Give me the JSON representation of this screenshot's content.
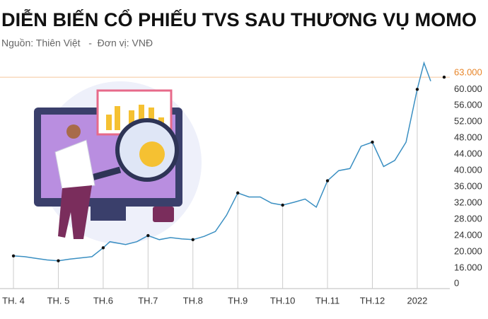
{
  "chart_data": {
    "type": "line",
    "title": "DIỄN BIẾN CỔ PHIẾU TVS SAU THƯƠNG VỤ MOMO",
    "subtitle": "Nguồn: Thiên Việt   -  Đơn vị: VNĐ",
    "x": [
      0,
      0.25,
      0.5,
      0.75,
      1,
      1.25,
      1.5,
      1.75,
      2,
      2.15,
      2.5,
      2.75,
      3,
      3.25,
      3.5,
      3.75,
      4,
      4.25,
      4.5,
      4.75,
      5,
      5.25,
      5.5,
      5.75,
      6,
      6.25,
      6.5,
      6.75,
      7,
      7.25,
      7.5,
      7.75,
      8,
      8.25,
      8.5,
      8.75,
      9,
      9.15,
      9.3
    ],
    "series": [
      {
        "color": "#3a8fc2",
        "values": [
          19000,
          18800,
          18400,
          18000,
          17800,
          18200,
          18500,
          18800,
          21000,
          22500,
          21800,
          22500,
          24000,
          23000,
          23500,
          23200,
          23000,
          23800,
          25000,
          29000,
          34500,
          33500,
          33500,
          32000,
          31500,
          32200,
          33000,
          31000,
          37500,
          40000,
          40500,
          46000,
          47000,
          41000,
          42500,
          47000,
          60000,
          66500,
          62000
        ]
      }
    ],
    "xlim": [
      -0.3,
      9.6
    ],
    "xticks": [
      {
        "value": 0,
        "label": "TH. 4"
      },
      {
        "value": 1,
        "label": "TH. 5"
      },
      {
        "value": 2,
        "label": "TH.6"
      },
      {
        "value": 3,
        "label": "TH.7"
      },
      {
        "value": 4,
        "label": "TH.8"
      },
      {
        "value": 5,
        "label": "TH.9"
      },
      {
        "value": 6,
        "label": "TH.10"
      },
      {
        "value": 7,
        "label": "TH.11"
      },
      {
        "value": 8,
        "label": "TH.12"
      },
      {
        "value": 9,
        "label": "2022"
      }
    ],
    "ylim": [
      0,
      66500
    ],
    "yticks": [
      0,
      {
        "value": 16000,
        "label": "16.000"
      },
      {
        "value": 20000,
        "label": "20.000"
      },
      {
        "value": 24000,
        "label": "24.000"
      },
      {
        "value": 28000,
        "label": "28.000"
      },
      {
        "value": 32000,
        "label": "32.000"
      },
      {
        "value": 36000,
        "label": "36.000"
      },
      {
        "value": 40000,
        "label": "40.000"
      },
      {
        "value": 44000,
        "label": "44.000"
      },
      {
        "value": 48000,
        "label": "48.000"
      },
      {
        "value": 52000,
        "label": "52.000"
      },
      {
        "value": 56000,
        "label": "56.000"
      },
      {
        "value": 60000,
        "label": "60.000"
      }
    ],
    "broken_axis": true,
    "reference_line": {
      "value": 63000,
      "label": "63.000",
      "color": "#e8862a"
    }
  }
}
